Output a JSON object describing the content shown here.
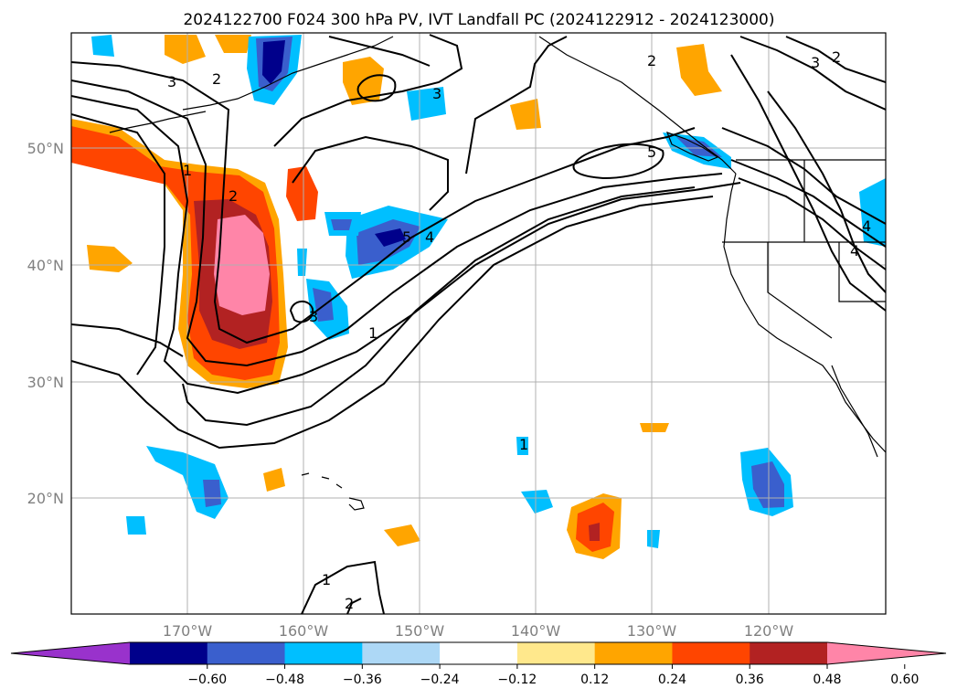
{
  "title": "2024122700 F024 300 hPa PV, IVT Landfall PC (2024122912 - 2024123000)",
  "map": {
    "lat_ticks": [
      "50°N",
      "40°N",
      "30°N",
      "20°N"
    ],
    "lon_ticks": [
      "170°W",
      "160°W",
      "150°W",
      "140°W",
      "130°W",
      "120°W"
    ],
    "contour_labels": [
      "1",
      "2",
      "3",
      "4",
      "5"
    ],
    "colors": {
      "coast": "#000000",
      "contour": "#000000",
      "grid": "#b0b0b0"
    }
  },
  "colorbar": {
    "ticks": [
      "−0.60",
      "−0.48",
      "−0.36",
      "−0.24",
      "−0.12",
      "0.12",
      "0.24",
      "0.36",
      "0.48",
      "0.60"
    ],
    "colors": [
      "#9932cc",
      "#00008b",
      "#3a5fcd",
      "#00bfff",
      "#add8f6",
      "#ffffff",
      "#ffe88c",
      "#ffa500",
      "#ff4500",
      "#b22222",
      "#ff85a8"
    ]
  }
}
